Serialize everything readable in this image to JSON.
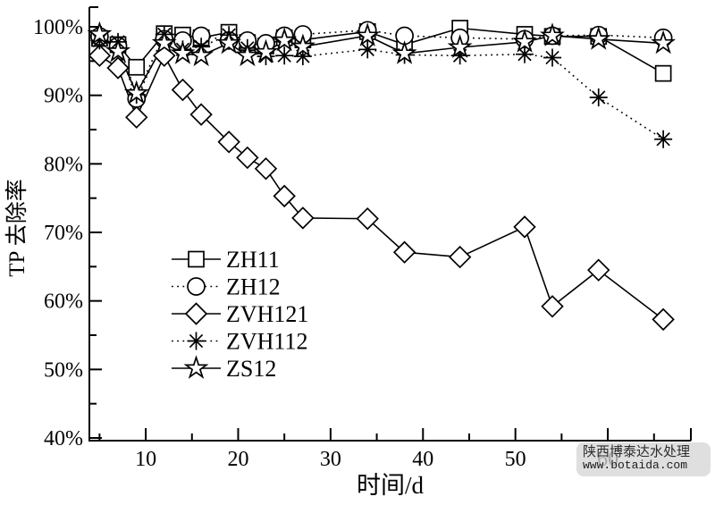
{
  "watermark": {
    "line1": "陕西博泰达水处理",
    "line2": "www.botaida.com"
  },
  "chart_data": {
    "type": "line",
    "title": "",
    "xlabel": "时间/d",
    "ylabel": "TP 去除率",
    "xlim": [
      3.9,
      69
    ],
    "ylim": [
      40,
      100
    ],
    "x_major_ticks": [
      10,
      20,
      30,
      40,
      50,
      60
    ],
    "x_minor_ticks": [
      5,
      15,
      25,
      35,
      45,
      55,
      65
    ],
    "y_major_ticks": [
      40,
      50,
      60,
      70,
      80,
      90,
      100
    ],
    "y_minor_ticks": [
      45,
      55,
      65,
      75,
      85,
      95
    ],
    "y_tick_suffix": "%",
    "grid": false,
    "legend_position": "inside-left-middle",
    "x": [
      5,
      7,
      9,
      12,
      14,
      16,
      19,
      21,
      23,
      25,
      27,
      34,
      38,
      44,
      51,
      54,
      59,
      66
    ],
    "series": [
      {
        "name": "ZH11",
        "marker": "square",
        "line": "solid",
        "values": [
          98.3,
          97.4,
          94.1,
          99.0,
          98.8,
          98.4,
          99.2,
          97.7,
          97.2,
          98.4,
          98.1,
          99.3,
          97.4,
          99.8,
          98.9,
          98.6,
          98.6,
          93.2
        ]
      },
      {
        "name": "ZH12",
        "marker": "circle",
        "line": "dotted",
        "values": [
          98.6,
          97.2,
          89.5,
          98.2,
          98.0,
          98.7,
          98.0,
          98.0,
          97.6,
          98.7,
          98.9,
          99.5,
          98.7,
          98.4,
          98.2,
          98.7,
          98.8,
          98.4
        ]
      },
      {
        "name": "ZVH121",
        "marker": "diamond",
        "line": "solid",
        "values": [
          95.8,
          94.0,
          86.8,
          95.8,
          90.8,
          87.2,
          83.2,
          80.9,
          79.3,
          75.3,
          72.1,
          72.0,
          67.1,
          66.4,
          70.8,
          59.2,
          64.5,
          57.3
        ]
      },
      {
        "name": "ZVH112",
        "marker": "asterisk",
        "line": "dotted",
        "values": [
          98.0,
          97.8,
          90.1,
          98.9,
          96.7,
          97.1,
          98.8,
          96.9,
          95.7,
          95.8,
          95.7,
          96.7,
          95.9,
          95.8,
          96.0,
          95.5,
          89.7,
          83.6
        ]
      },
      {
        "name": "ZS12",
        "marker": "star",
        "line": "solid",
        "values": [
          98.9,
          96.4,
          90.3,
          97.6,
          96.1,
          95.8,
          97.6,
          95.8,
          96.3,
          98.0,
          97.1,
          98.7,
          96.1,
          97.0,
          97.8,
          98.7,
          98.2,
          97.6
        ]
      }
    ],
    "colors": {
      "stroke": "#000000",
      "background": "#ffffff"
    }
  }
}
